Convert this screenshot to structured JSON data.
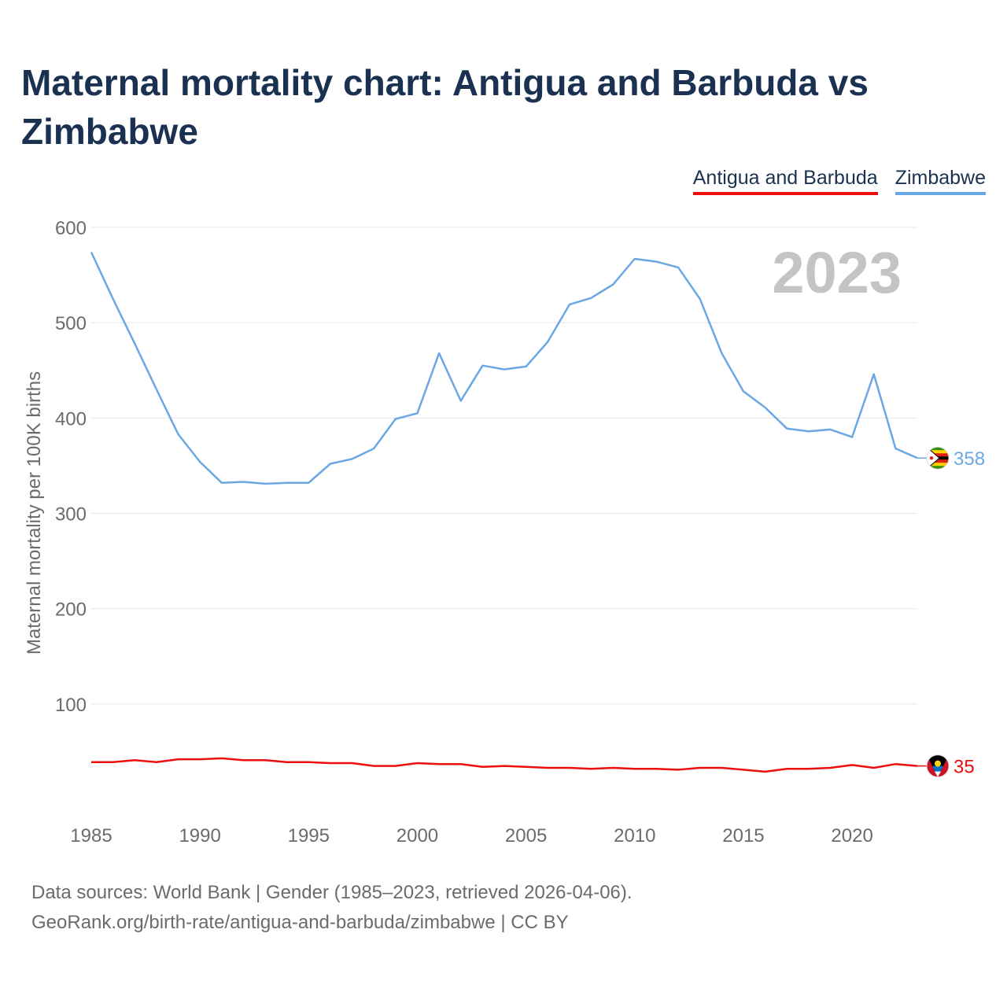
{
  "title": "Maternal mortality chart: Antigua and Barbuda vs Zimbabwe",
  "legend": [
    "Antigua and Barbuda",
    "Zimbabwe"
  ],
  "source": {
    "line1": "Data sources: World Bank | Gender (1985–2023, retrieved 2026-04-06).",
    "line2": "GeoRank.org/birth-rate/antigua-and-barbuda/zimbabwe | CC BY"
  },
  "chart_data": {
    "type": "line",
    "title": "Maternal mortality chart: Antigua and Barbuda vs Zimbabwe",
    "xlabel": "",
    "ylabel": "Maternal mortality per 100K births",
    "year_watermark": "2023",
    "xlim": [
      1985,
      2023
    ],
    "ylim": [
      0,
      600
    ],
    "grid": true,
    "legend_position": "top-right",
    "x_ticks": [
      1985,
      1990,
      1995,
      2000,
      2005,
      2010,
      2015,
      2020
    ],
    "y_ticks": [
      100,
      200,
      300,
      400,
      500,
      600
    ],
    "x": [
      1985,
      1986,
      1987,
      1988,
      1989,
      1990,
      1991,
      1992,
      1993,
      1994,
      1995,
      1996,
      1997,
      1998,
      1999,
      2000,
      2001,
      2002,
      2003,
      2004,
      2005,
      2006,
      2007,
      2008,
      2009,
      2010,
      2011,
      2012,
      2013,
      2014,
      2015,
      2016,
      2017,
      2018,
      2019,
      2020,
      2021,
      2022,
      2023
    ],
    "series": [
      {
        "name": "Antigua and Barbuda",
        "color": "#ee0e0e",
        "end_label": "35",
        "flag": "antigua-and-barbuda-flag",
        "values": [
          39,
          39,
          41,
          39,
          42,
          42,
          43,
          41,
          41,
          39,
          39,
          38,
          38,
          35,
          35,
          38,
          37,
          37,
          34,
          35,
          34,
          33,
          33,
          32,
          33,
          32,
          32,
          31,
          33,
          33,
          31,
          29,
          32,
          32,
          33,
          36,
          33,
          37,
          35
        ]
      },
      {
        "name": "Zimbabwe",
        "color": "#6aa8e4",
        "end_label": "358",
        "flag": "zimbabwe-flag",
        "values": [
          574,
          525,
          478,
          430,
          383,
          354,
          332,
          333,
          331,
          332,
          332,
          352,
          357,
          368,
          399,
          405,
          468,
          418,
          455,
          451,
          454,
          480,
          519,
          526,
          540,
          567,
          564,
          558,
          525,
          468,
          428,
          411,
          389,
          386,
          388,
          380,
          446,
          368,
          358
        ]
      }
    ]
  }
}
